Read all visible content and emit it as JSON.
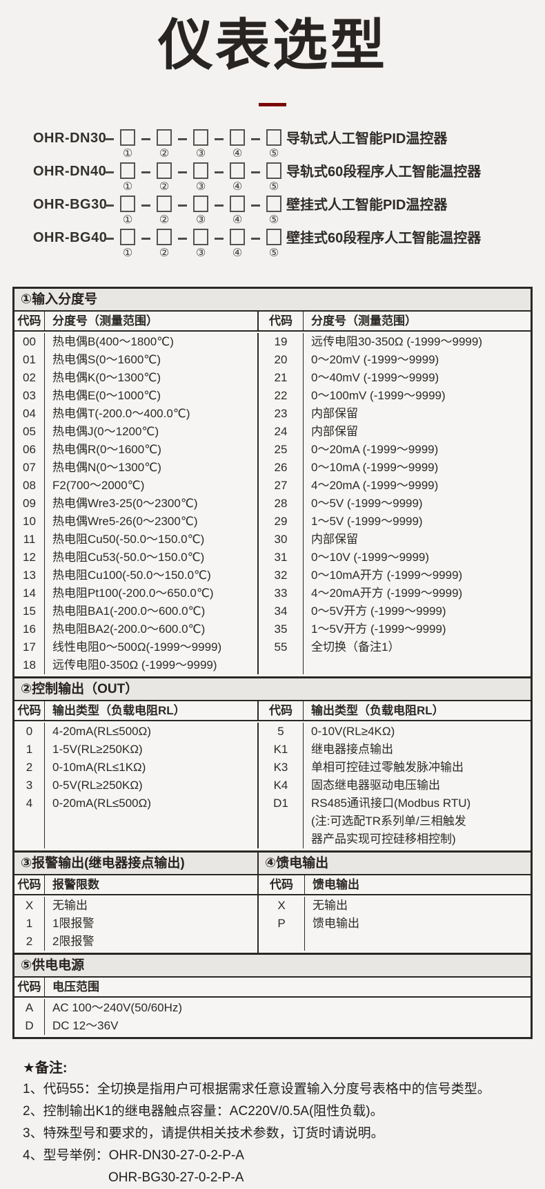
{
  "title": "仪表选型",
  "accent_color": "#7a0708",
  "models": {
    "digits": [
      "①",
      "②",
      "③",
      "④",
      "⑤"
    ],
    "items": [
      {
        "name": "OHR-DN30",
        "desc": "导轨式人工智能PID温控器"
      },
      {
        "name": "OHR-DN40",
        "desc": "导轨式60段程序人工智能温控器"
      },
      {
        "name": "OHR-BG30",
        "desc": "壁挂式人工智能PID温控器"
      },
      {
        "name": "OHR-BG40",
        "desc": "壁挂式60段程序人工智能温控器"
      }
    ]
  },
  "table": {
    "sections": [
      {
        "type": "pair",
        "num": 1,
        "band": "①输入分度号",
        "headers": [
          "代码",
          "分度号（测量范围）",
          "代码",
          "分度号（测量范围）"
        ],
        "left": [
          [
            "00",
            "热电偶B(400～1800℃)"
          ],
          [
            "01",
            "热电偶S(0～1600℃)"
          ],
          [
            "02",
            "热电偶K(0～1300℃)"
          ],
          [
            "03",
            "热电偶E(0～1000℃)"
          ],
          [
            "04",
            "热电偶T(-200.0～400.0℃)"
          ],
          [
            "05",
            "热电偶J(0～1200℃)"
          ],
          [
            "06",
            "热电偶R(0～1600℃)"
          ],
          [
            "07",
            "热电偶N(0～1300℃)"
          ],
          [
            "08",
            "F2(700～2000℃)"
          ],
          [
            "09",
            "热电偶Wre3-25(0～2300℃)"
          ],
          [
            "10",
            "热电偶Wre5-26(0～2300℃)"
          ],
          [
            "11",
            "热电阻Cu50(-50.0～150.0℃)"
          ],
          [
            "12",
            "热电阻Cu53(-50.0～150.0℃)"
          ],
          [
            "13",
            "热电阻Cu100(-50.0～150.0℃)"
          ],
          [
            "14",
            "热电阻Pt100(-200.0～650.0℃)"
          ],
          [
            "15",
            "热电阻BA1(-200.0～600.0℃)"
          ],
          [
            "16",
            "热电阻BA2(-200.0～600.0℃)"
          ],
          [
            "17",
            "线性电阻0～500Ω(-1999～9999)"
          ],
          [
            "18",
            "远传电阻0-350Ω (-1999～9999)"
          ]
        ],
        "right": [
          [
            "19",
            "远传电阻30-350Ω (-1999～9999)"
          ],
          [
            "20",
            "0～20mV (-1999～9999)"
          ],
          [
            "21",
            "0～40mV (-1999～9999)"
          ],
          [
            "22",
            "0～100mV (-1999～9999)"
          ],
          [
            "23",
            "内部保留"
          ],
          [
            "24",
            "内部保留"
          ],
          [
            "25",
            "0～20mA (-1999～9999)"
          ],
          [
            "26",
            "0～10mA (-1999～9999)"
          ],
          [
            "27",
            "4～20mA (-1999～9999)"
          ],
          [
            "28",
            "0～5V (-1999～9999)"
          ],
          [
            "29",
            "1～5V (-1999～9999)"
          ],
          [
            "30",
            "内部保留"
          ],
          [
            "31",
            "0～10V (-1999～9999)"
          ],
          [
            "32",
            "0～10mA开方 (-1999～9999)"
          ],
          [
            "33",
            "4～20mA开方 (-1999～9999)"
          ],
          [
            "34",
            "0～5V开方 (-1999～9999)"
          ],
          [
            "35",
            "1～5V开方 (-1999～9999)"
          ],
          [
            "55",
            "全切换（备注1）"
          ]
        ]
      },
      {
        "type": "pair",
        "num": 2,
        "band": "②控制输出（OUT）",
        "headers": [
          "代码",
          "输出类型（负载电阻RL）",
          "代码",
          "输出类型（负载电阻RL）"
        ],
        "left": [
          [
            "0",
            "4-20mA(RL≤500Ω)"
          ],
          [
            "1",
            "1-5V(RL≥250KΩ)"
          ],
          [
            "2",
            "0-10mA(RL≤1KΩ)"
          ],
          [
            "3",
            "0-5V(RL≥250KΩ)"
          ],
          [
            "4",
            "0-20mA(RL≤500Ω)"
          ]
        ],
        "right": [
          [
            "5",
            "0-10V(RL≥4KΩ)"
          ],
          [
            "K1",
            "继电器接点输出"
          ],
          [
            "K3",
            "单相可控硅过零触发脉冲输出"
          ],
          [
            "K4",
            "固态继电器驱动电压输出"
          ],
          [
            "D1",
            "RS485通讯接口(Modbus RTU)\n(注:可选配TR系列单/三相触发\n器产品实现可控硅移相控制)"
          ]
        ]
      },
      {
        "type": "split",
        "num": 3,
        "subs": [
          {
            "band": "③报警输出(继电器接点输出)",
            "headers": [
              "代码",
              "报警限数"
            ],
            "rows": [
              [
                "X",
                "无输出"
              ],
              [
                "1",
                "1限报警"
              ],
              [
                "2",
                "2限报警"
              ]
            ]
          },
          {
            "band": "④馈电输出",
            "headers": [
              "代码",
              "馈电输出"
            ],
            "rows": [
              [
                "X",
                "无输出"
              ],
              [
                "P",
                "馈电输出"
              ]
            ]
          }
        ]
      },
      {
        "type": "single",
        "num": 5,
        "band": "⑤供电电源",
        "headers": [
          "代码",
          "电压范围"
        ],
        "rows": [
          [
            "A",
            "AC 100～240V(50/60Hz)"
          ],
          [
            "D",
            "DC 12～36V"
          ]
        ]
      }
    ]
  },
  "notes": {
    "title": "★备注:",
    "items": [
      "1、代码55：全切换是指用户可根据需求任意设置输入分度号表格中的信号类型。",
      "2、控制输出K1的继电器触点容量：AC220V/0.5A(阻性负载)。",
      "3、特殊型号和要求的，请提供相关技术参数，订货时请说明。",
      "4、型号举例：OHR-DN30-27-0-2-P-A"
    ],
    "example2": "OHR-BG30-27-0-2-P-A"
  }
}
